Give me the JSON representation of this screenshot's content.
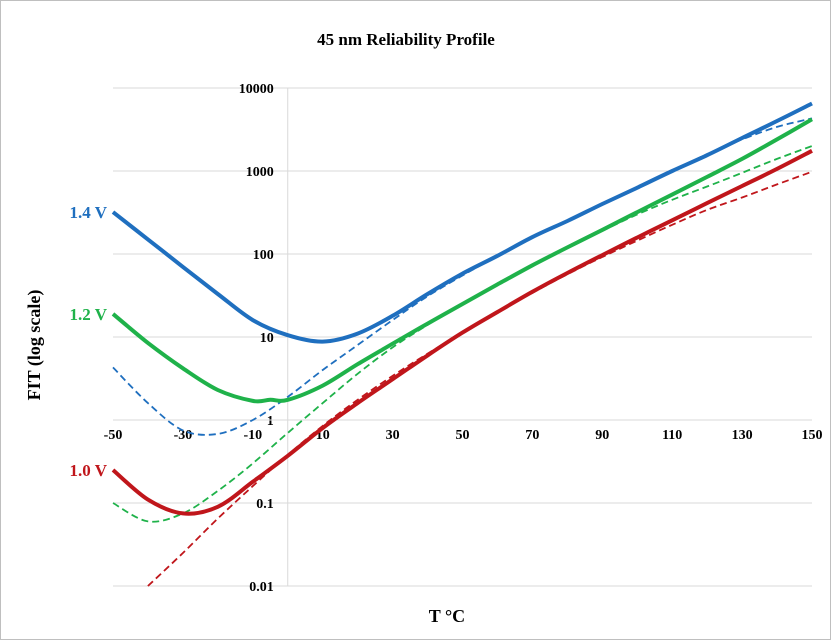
{
  "chart_data": {
    "type": "line",
    "title": "45 nm Reliability Profile",
    "xlabel": "T °C",
    "ylabel": "FIT (log scale)",
    "y_scale": "log",
    "xlim": [
      -50,
      150
    ],
    "ylim": [
      0.01,
      10000
    ],
    "x_ticks": [
      -50,
      -30,
      -10,
      10,
      30,
      50,
      70,
      90,
      110,
      130,
      150
    ],
    "x_tick_labels": [
      "-50",
      "-30",
      "-10",
      "10",
      "30",
      "50",
      "70",
      "90",
      "110",
      "130",
      "150"
    ],
    "y_ticks": [
      0.01,
      0.1,
      1,
      10,
      100,
      1000,
      10000
    ],
    "y_tick_labels": [
      "0.01",
      "0.1",
      "1",
      "10",
      "100",
      "1000",
      "10000"
    ],
    "grid": "horizontal",
    "legend": "none",
    "series": [
      {
        "name": "1.4 V",
        "color": "#1f6fbf",
        "style": "solid",
        "x": [
          -50,
          -40,
          -30,
          -20,
          -10,
          0,
          10,
          20,
          30,
          40,
          50,
          60,
          70,
          80,
          90,
          100,
          110,
          120,
          130,
          140,
          150
        ],
        "y": [
          320,
          150,
          70,
          33,
          16,
          10.5,
          8.8,
          11,
          18,
          33,
          58,
          95,
          160,
          250,
          400,
          630,
          1000,
          1550,
          2500,
          4000,
          6500
        ]
      },
      {
        "name": "",
        "color": "#1f6fbf",
        "style": "dashed",
        "x": [
          -50,
          -40,
          -30,
          -20,
          -10,
          0,
          10,
          20,
          30,
          40,
          50,
          60,
          70,
          80,
          90,
          100,
          110,
          120,
          130,
          140,
          150
        ],
        "y": [
          4.3,
          1.6,
          0.75,
          0.68,
          1.0,
          1.9,
          4.0,
          8.0,
          16,
          31,
          55,
          95,
          160,
          250,
          400,
          630,
          1000,
          1600,
          2400,
          3400,
          4300
        ]
      },
      {
        "name": "1.2 V",
        "color": "#1fb24a",
        "style": "solid",
        "x": [
          -50,
          -40,
          -30,
          -20,
          -10,
          -5,
          0,
          10,
          20,
          30,
          40,
          50,
          60,
          70,
          80,
          90,
          100,
          110,
          120,
          130,
          140,
          150
        ],
        "y": [
          19,
          8.5,
          4.2,
          2.3,
          1.7,
          1.75,
          1.75,
          2.6,
          4.7,
          8.3,
          14.5,
          25,
          43,
          73,
          120,
          195,
          320,
          520,
          850,
          1400,
          2400,
          4200
        ]
      },
      {
        "name": "",
        "color": "#1fb24a",
        "style": "dashed",
        "x": [
          -50,
          -40,
          -30,
          -20,
          -10,
          0,
          10,
          20,
          30,
          40,
          50,
          60,
          70,
          80,
          90,
          100,
          110,
          120,
          130,
          140,
          150
        ],
        "y": [
          0.1,
          0.06,
          0.075,
          0.14,
          0.3,
          0.7,
          1.6,
          3.6,
          7.5,
          14,
          25,
          43,
          73,
          120,
          190,
          300,
          450,
          650,
          950,
          1400,
          2000
        ]
      },
      {
        "name": "1.0 V",
        "color": "#c0161b",
        "style": "solid",
        "x": [
          -50,
          -40,
          -30,
          -20,
          -10,
          0,
          10,
          20,
          30,
          40,
          50,
          60,
          70,
          80,
          90,
          100,
          110,
          120,
          130,
          140,
          150
        ],
        "y": [
          0.25,
          0.11,
          0.075,
          0.09,
          0.18,
          0.37,
          0.8,
          1.6,
          3.1,
          6.0,
          11.3,
          20,
          35,
          59,
          97,
          158,
          255,
          410,
          660,
          1060,
          1750
        ]
      },
      {
        "name": "",
        "color": "#c0161b",
        "style": "dashed",
        "x": [
          -40,
          -30,
          -20,
          -10,
          0,
          10,
          20,
          30,
          40,
          50,
          60,
          70,
          80,
          90,
          100,
          110,
          120,
          130,
          140,
          150
        ],
        "y": [
          0.01,
          0.025,
          0.065,
          0.16,
          0.38,
          0.85,
          1.75,
          3.4,
          6.3,
          11.3,
          20,
          34,
          57,
          92,
          145,
          225,
          340,
          480,
          690,
          980
        ]
      }
    ]
  }
}
